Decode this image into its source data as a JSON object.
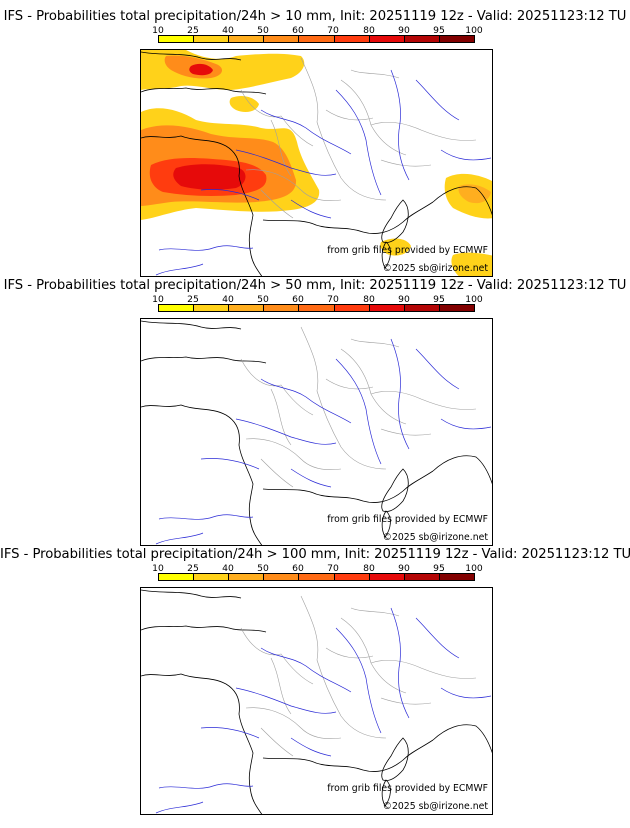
{
  "colors": {
    "scale": [
      "#ffff00",
      "#ffd21a",
      "#ffae1f",
      "#ff8c1a",
      "#ff6a14",
      "#ff3c0f",
      "#e60a0a",
      "#b40505",
      "#820000",
      "#5a0000"
    ],
    "river": "#2b2bd6",
    "border": "#a0a0a0",
    "coast": "#000000"
  },
  "colorbar": {
    "ticks": [
      "10",
      "25",
      "40",
      "50",
      "60",
      "70",
      "80",
      "90",
      "95",
      "100"
    ]
  },
  "panels": [
    {
      "title": "IFS - Probabilities total precipitation/24h > 10 mm, Init: 20251119 12z - Valid: 20251123:12 TU",
      "source": "from grib files provided by ECMWF",
      "copyright": "©2025 sb@irizone.net"
    },
    {
      "title": "IFS - Probabilities total precipitation/24h > 50 mm, Init: 20251119 12z - Valid: 20251123:12 TU",
      "source": "from grib files provided by ECMWF",
      "copyright": "©2025 sb@irizone.net"
    },
    {
      "title": "IFS - Probabilities total precipitation/24h > 100 mm, Init: 20251119 12z - Valid: 20251123:12 TU",
      "source": "from grib files provided by ECMWF",
      "copyright": "©2025 sb@irizone.net"
    }
  ]
}
